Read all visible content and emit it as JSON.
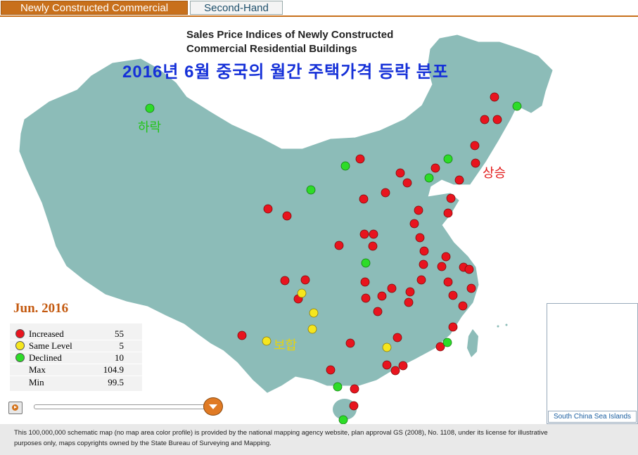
{
  "tabs": [
    {
      "label": "Newly Constructed Commercial",
      "active": true
    },
    {
      "label": "Second-Hand",
      "active": false
    }
  ],
  "title_en": [
    "Sales Price Indices of Newly Constructed",
    "Commercial Residential Buildings"
  ],
  "title_ko": "2016년 6월 중국의 월간 주택가격 등락 분포",
  "annotations": {
    "down": "하락",
    "up": "상승",
    "same": "보합"
  },
  "legend": {
    "month": "Jun. 2016",
    "rows": [
      {
        "name": "Increased",
        "value": "55",
        "color": "#e8141e"
      },
      {
        "name": "Same Level",
        "value": "5",
        "color": "#f5e61e"
      },
      {
        "name": "Declined",
        "value": "10",
        "color": "#2ddc28"
      },
      {
        "name": "Max",
        "value": "104.9"
      },
      {
        "name": "Min",
        "value": "99.5"
      }
    ]
  },
  "inset_label": "South China Sea Islands",
  "footer": "This 100,000,000 schematic map (no map area color profile) is provided by the national mapping agency website, plan approval GS (2008), No. 1108, under its license for illustrative purposes only, maps copyrights owned by the State Bureau of Surveying and Mapping.",
  "colors": {
    "increased": "#e8141e",
    "same": "#f5e61e",
    "declined": "#2ddc28",
    "land": "#8cbcb8",
    "accent": "#c8701c"
  }
}
